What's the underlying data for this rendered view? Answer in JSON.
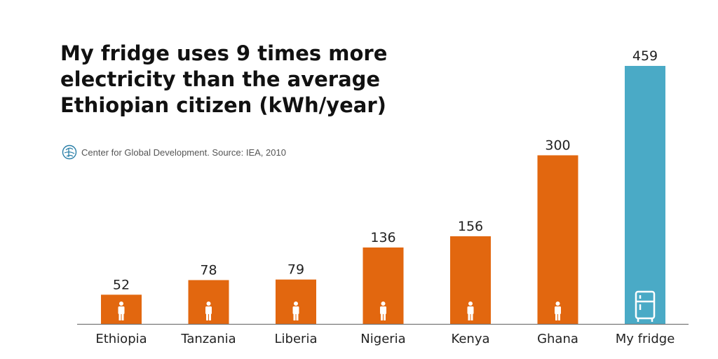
{
  "title_lines": [
    "My fridge uses 9 times more",
    "electricity than the average",
    "Ethiopian citizen (kWh/year)"
  ],
  "source": "Center for Global Development. Source: IEA, 2010",
  "colors": {
    "country": "#e2670f",
    "fridge": "#4aaac6",
    "axis": "#777777"
  },
  "chart_data": {
    "type": "bar",
    "title": "My fridge uses 9 times more electricity than the average Ethiopian citizen (kWh/year)",
    "categories": [
      "Ethiopia",
      "Tanzania",
      "Liberia",
      "Nigeria",
      "Kenya",
      "Ghana",
      "My fridge"
    ],
    "values": [
      52,
      78,
      79,
      136,
      156,
      300,
      459
    ],
    "bar_icons": [
      "person-icon",
      "person-icon",
      "person-icon",
      "person-icon",
      "person-icon",
      "person-icon",
      "fridge-icon"
    ],
    "ylim": [
      0,
      459
    ],
    "grid": false
  }
}
